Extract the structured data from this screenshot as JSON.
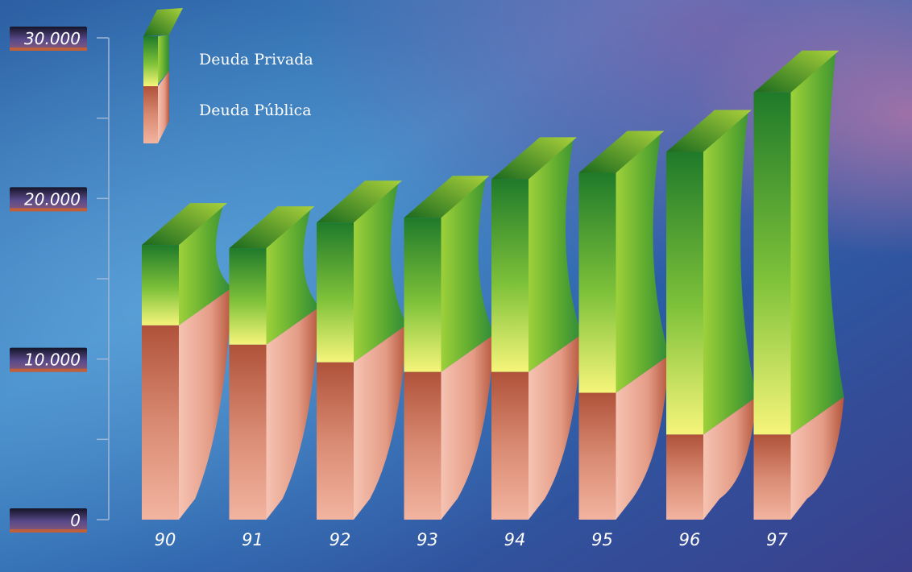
{
  "chart_data": {
    "type": "bar",
    "stacked": true,
    "categories": [
      "90",
      "91",
      "92",
      "93",
      "94",
      "95",
      "96",
      "97"
    ],
    "series": [
      {
        "name": "Deuda Pública",
        "values": [
          12100,
          10900,
          9800,
          9200,
          9200,
          7900,
          5300,
          5300
        ],
        "color": "#e8a28a"
      },
      {
        "name": "Deuda Privada",
        "values": [
          5000,
          6000,
          8700,
          9600,
          12000,
          13700,
          17600,
          21300
        ],
        "color": "#3f9a3a"
      }
    ],
    "ylim": [
      0,
      30000
    ],
    "yticks": [
      {
        "value": 0,
        "label": "0"
      },
      {
        "value": 10000,
        "label": "10.000"
      },
      {
        "value": 20000,
        "label": "20.000"
      },
      {
        "value": 30000,
        "label": "30.000"
      }
    ],
    "title": "",
    "xlabel": "",
    "ylabel": "",
    "legend": {
      "placement": "top-left"
    },
    "grid": false
  }
}
